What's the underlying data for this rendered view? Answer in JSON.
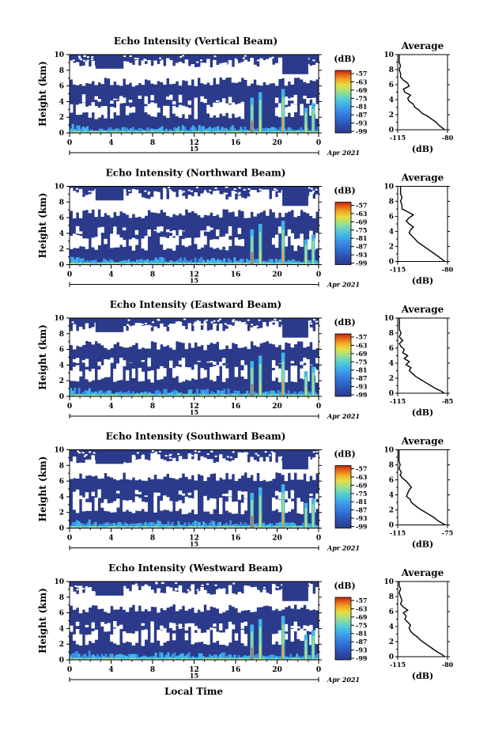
{
  "chart_data": {
    "type": "heatmap",
    "figure_xlabel": "Local Time",
    "colors": {
      "background": "#2b3a8a",
      "colormap": [
        "#2b3a8a",
        "#2c4fae",
        "#2f6ed0",
        "#3a8fe6",
        "#3fb4e8",
        "#5fd0c8",
        "#9fe08a",
        "#e6e040",
        "#f4a020",
        "#e05a18",
        "#c02010"
      ]
    },
    "panels": [
      {
        "title": "Echo Intensity (Vertical Beam)",
        "ylabel": "Height (km)",
        "yticks": [
          "0",
          "2",
          "4",
          "6",
          "8",
          "10"
        ],
        "ylim": [
          0,
          10
        ],
        "xticks": [
          "0",
          "4",
          "8",
          "12",
          "16",
          "20",
          "0"
        ],
        "xlim": [
          0,
          24
        ],
        "day_label": "15",
        "date_label": "Apr 2021",
        "colorbar": {
          "unit": "(dB)",
          "ticks": [
            "-57",
            "-63",
            "-69",
            "-75",
            "-81",
            "-87",
            "-93",
            "-99"
          ]
        },
        "average": {
          "title": "Average",
          "xlabel": "(dB)",
          "xticks": [
            "-115",
            "-80"
          ],
          "xlim": [
            -115,
            -80
          ],
          "profile": [
            [
              0,
              -82
            ],
            [
              0.3,
              -84
            ],
            [
              0.6,
              -86
            ],
            [
              1,
              -88
            ],
            [
              1.4,
              -91
            ],
            [
              1.8,
              -94
            ],
            [
              2.2,
              -98
            ],
            [
              2.6,
              -100
            ],
            [
              3,
              -103
            ],
            [
              3.4,
              -104
            ],
            [
              3.8,
              -107
            ],
            [
              4.2,
              -108
            ],
            [
              4.6,
              -106
            ],
            [
              5,
              -110
            ],
            [
              5.4,
              -111
            ],
            [
              5.8,
              -107
            ],
            [
              6.2,
              -108
            ],
            [
              6.6,
              -111
            ],
            [
              7,
              -113
            ],
            [
              7.5,
              -113
            ],
            [
              8,
              -114
            ],
            [
              8.5,
              -113
            ],
            [
              9,
              -114
            ],
            [
              9.5,
              -114
            ],
            [
              10,
              -114
            ]
          ]
        }
      },
      {
        "title": "Echo Intensity (Northward Beam)",
        "ylabel": "Height (km)",
        "yticks": [
          "0",
          "2",
          "4",
          "6",
          "8",
          "10"
        ],
        "ylim": [
          0,
          10
        ],
        "xticks": [
          "0",
          "4",
          "8",
          "12",
          "16",
          "20",
          "0"
        ],
        "xlim": [
          0,
          24
        ],
        "day_label": "15",
        "date_label": "Apr 2021",
        "colorbar": {
          "unit": "(dB)",
          "ticks": [
            "-57",
            "-63",
            "-69",
            "-75",
            "-81",
            "-87",
            "-93",
            "-99"
          ]
        },
        "average": {
          "title": "Average",
          "xlabel": "(dB)",
          "xticks": [
            "-115",
            "-80"
          ],
          "xlim": [
            -115,
            -80
          ],
          "profile": [
            [
              0,
              -82
            ],
            [
              0.3,
              -84
            ],
            [
              0.6,
              -86
            ],
            [
              1,
              -89
            ],
            [
              1.4,
              -92
            ],
            [
              1.8,
              -95
            ],
            [
              2.2,
              -98
            ],
            [
              2.6,
              -101
            ],
            [
              3,
              -103
            ],
            [
              3.4,
              -105
            ],
            [
              3.8,
              -107
            ],
            [
              4.2,
              -106
            ],
            [
              4.6,
              -104
            ],
            [
              5,
              -107
            ],
            [
              5.4,
              -109
            ],
            [
              5.8,
              -107
            ],
            [
              6.2,
              -104
            ],
            [
              6.6,
              -108
            ],
            [
              7,
              -112
            ],
            [
              7.5,
              -112
            ],
            [
              8,
              -113
            ],
            [
              8.5,
              -112
            ],
            [
              9,
              -113
            ],
            [
              9.5,
              -113
            ],
            [
              10,
              -113
            ]
          ]
        }
      },
      {
        "title": "Echo Intensity (Eastward Beam)",
        "ylabel": "Height (km)",
        "yticks": [
          "0",
          "2",
          "4",
          "6",
          "8",
          "10"
        ],
        "ylim": [
          0,
          10
        ],
        "xticks": [
          "0",
          "4",
          "8",
          "12",
          "16",
          "20",
          "0"
        ],
        "xlim": [
          0,
          24
        ],
        "day_label": "15",
        "date_label": "Apr 2021",
        "colorbar": {
          "unit": "(dB)",
          "ticks": [
            "-57",
            "-63",
            "-69",
            "-75",
            "-81",
            "-87",
            "-93",
            "-99"
          ]
        },
        "average": {
          "title": "Average",
          "xlabel": "(dB)",
          "xticks": [
            "-115",
            "-85"
          ],
          "xlim": [
            -115,
            -85
          ],
          "profile": [
            [
              0,
              -87
            ],
            [
              0.3,
              -89
            ],
            [
              0.6,
              -92
            ],
            [
              1,
              -95
            ],
            [
              1.4,
              -98
            ],
            [
              1.8,
              -101
            ],
            [
              2.2,
              -104
            ],
            [
              2.6,
              -106
            ],
            [
              3,
              -108
            ],
            [
              3.4,
              -107
            ],
            [
              3.8,
              -110
            ],
            [
              4.2,
              -108
            ],
            [
              4.6,
              -111
            ],
            [
              5,
              -109
            ],
            [
              5.4,
              -112
            ],
            [
              5.8,
              -111
            ],
            [
              6.2,
              -113
            ],
            [
              6.6,
              -114
            ],
            [
              7,
              -112
            ],
            [
              7.5,
              -114
            ],
            [
              8,
              -113
            ],
            [
              8.5,
              -114
            ],
            [
              9,
              -114
            ],
            [
              9.5,
              -114
            ],
            [
              10,
              -114
            ]
          ]
        }
      },
      {
        "title": "Echo Intensity (Southward Beam)",
        "ylabel": "Height (km)",
        "yticks": [
          "0",
          "2",
          "4",
          "6",
          "8",
          "10"
        ],
        "ylim": [
          0,
          10
        ],
        "xticks": [
          "0",
          "4",
          "8",
          "12",
          "16",
          "20",
          "0"
        ],
        "xlim": [
          0,
          24
        ],
        "day_label": "15",
        "date_label": "Apr 2021",
        "colorbar": {
          "unit": "(dB)",
          "ticks": [
            "-57",
            "-63",
            "-69",
            "-75",
            "-81",
            "-87",
            "-93",
            "-99"
          ]
        },
        "average": {
          "title": "Average",
          "xlabel": "(dB)",
          "xticks": [
            "-115",
            "-75"
          ],
          "xlim": [
            -115,
            -75
          ],
          "profile": [
            [
              0,
              -77
            ],
            [
              0.3,
              -80
            ],
            [
              0.6,
              -83
            ],
            [
              1,
              -86
            ],
            [
              1.4,
              -90
            ],
            [
              1.8,
              -94
            ],
            [
              2.2,
              -98
            ],
            [
              2.6,
              -101
            ],
            [
              3,
              -104
            ],
            [
              3.4,
              -105
            ],
            [
              3.8,
              -108
            ],
            [
              4.2,
              -107
            ],
            [
              4.6,
              -106
            ],
            [
              5,
              -104
            ],
            [
              5.4,
              -106
            ],
            [
              5.8,
              -108
            ],
            [
              6.2,
              -111
            ],
            [
              6.6,
              -113
            ],
            [
              7,
              -112
            ],
            [
              7.5,
              -114
            ],
            [
              8,
              -113
            ],
            [
              8.5,
              -114
            ],
            [
              9,
              -114
            ],
            [
              9.5,
              -114
            ],
            [
              10,
              -114
            ]
          ]
        }
      },
      {
        "title": "Echo Intensity (Westward Beam)",
        "ylabel": "Height (km)",
        "yticks": [
          "0",
          "2",
          "4",
          "6",
          "8",
          "10"
        ],
        "ylim": [
          0,
          10
        ],
        "xticks": [
          "0",
          "4",
          "8",
          "12",
          "16",
          "20",
          "0"
        ],
        "xlim": [
          0,
          24
        ],
        "day_label": "15",
        "date_label": "Apr 2021",
        "colorbar": {
          "unit": "(dB)",
          "ticks": [
            "-57",
            "-63",
            "-69",
            "-75",
            "-81",
            "-87",
            "-93",
            "-99"
          ]
        },
        "average": {
          "title": "Average",
          "xlabel": "(dB)",
          "xticks": [
            "-115",
            "-80"
          ],
          "xlim": [
            -115,
            -80
          ],
          "profile": [
            [
              0,
              -82
            ],
            [
              0.3,
              -84
            ],
            [
              0.6,
              -87
            ],
            [
              1,
              -90
            ],
            [
              1.4,
              -93
            ],
            [
              1.8,
              -96
            ],
            [
              2.2,
              -99
            ],
            [
              2.6,
              -101
            ],
            [
              3,
              -104
            ],
            [
              3.4,
              -106
            ],
            [
              3.8,
              -107
            ],
            [
              4.2,
              -106
            ],
            [
              4.6,
              -108
            ],
            [
              5,
              -110
            ],
            [
              5.4,
              -109
            ],
            [
              5.8,
              -111
            ],
            [
              6.2,
              -108
            ],
            [
              6.6,
              -111
            ],
            [
              7,
              -113
            ],
            [
              7.5,
              -112
            ],
            [
              8,
              -113
            ],
            [
              8.5,
              -114
            ],
            [
              9,
              -113
            ],
            [
              9.5,
              -114
            ],
            [
              10,
              -114
            ]
          ]
        }
      }
    ]
  }
}
